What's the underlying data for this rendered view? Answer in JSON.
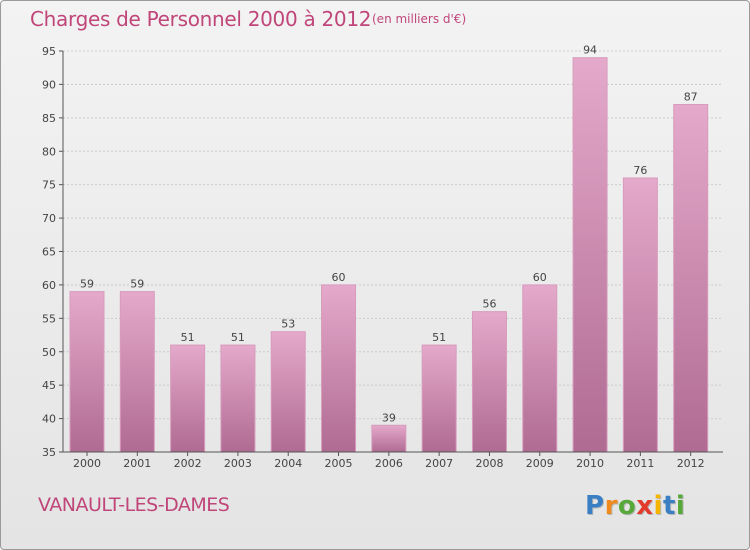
{
  "chart_data": {
    "type": "bar",
    "title": "Charges de Personnel 2000 à 2012",
    "subtitle": "(en milliers d'€)",
    "categories": [
      "2000",
      "2001",
      "2002",
      "2003",
      "2004",
      "2005",
      "2006",
      "2007",
      "2008",
      "2009",
      "2010",
      "2011",
      "2012"
    ],
    "values": [
      59,
      59,
      51,
      51,
      53,
      60,
      39,
      51,
      56,
      60,
      94,
      76,
      87
    ],
    "value_labels": [
      "59",
      "59",
      "51",
      "51",
      "53",
      "60",
      "39",
      "51",
      "56",
      "60",
      "94",
      "76",
      "87"
    ],
    "xlabel": "",
    "ylabel": "",
    "ylim": [
      35,
      95
    ],
    "yticks": [
      35,
      40,
      45,
      50,
      55,
      60,
      65,
      70,
      75,
      80,
      85,
      90,
      95
    ],
    "ytick_labels": [
      "35",
      "40",
      "45",
      "50",
      "55",
      "60",
      "65",
      "70",
      "75",
      "80",
      "85",
      "90",
      "95"
    ],
    "grid": true,
    "legend": "none",
    "colors": {
      "bar_light": "#e4a9cb",
      "bar_dark": "#b06b92",
      "bar_edge": "#d89bbd",
      "grid": "#cccccc",
      "text": "#c0467a"
    }
  },
  "commune": "VANAULT-LES-DAMES",
  "logo": {
    "letters": [
      "P",
      "r",
      "o",
      "x",
      "i",
      "t",
      "i"
    ],
    "colors": [
      "#3a7fc4",
      "#f08a1e",
      "#57a83b",
      "#e23b2e",
      "#f4b400",
      "#3a7fc4",
      "#57a83b"
    ]
  }
}
